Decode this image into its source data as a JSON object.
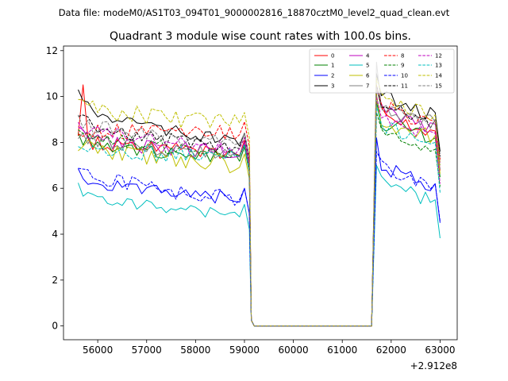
{
  "figure": {
    "suptitle": "Data file: modeM0/AS1T03_094T01_9000002816_18870cztM0_level2_quad_clean.evt"
  },
  "chart_data": {
    "type": "line",
    "title": "Quadrant 3 module wise count rates with 100.0s bins.",
    "xlabel": "",
    "ylabel": "",
    "x_offset_label": "+2.912e8",
    "xlim": [
      55300,
      63350
    ],
    "ylim": [
      -0.6,
      12.2
    ],
    "x_ticks": [
      56000,
      57000,
      58000,
      59000,
      60000,
      61000,
      62000,
      63000
    ],
    "x_tick_labels": [
      "56000",
      "57000",
      "58000",
      "59000",
      "60000",
      "61000",
      "62000",
      "63000"
    ],
    "y_ticks": [
      0,
      2,
      4,
      6,
      8,
      10,
      12
    ],
    "y_tick_labels": [
      "0",
      "2",
      "4",
      "6",
      "8",
      "10",
      "12"
    ],
    "grid": false,
    "legend_position": "upper right",
    "segments": {
      "seg1": {
        "start": 55600,
        "step": 100,
        "count": 36
      },
      "gap": {
        "start": 59200,
        "end": 61600,
        "value": 0.0
      },
      "seg2": {
        "start": 61700,
        "step": 100,
        "count": 14
      }
    },
    "series": [
      {
        "name": "0",
        "color": "#ff0000",
        "style": "solid",
        "seg1": {
          "level": 8.2,
          "decay": 0.6,
          "noise": 0.35,
          "spike": [
            1,
            2.2
          ]
        },
        "seg2": {
          "level": 9.3,
          "noise": 0.4,
          "peak": 10.5
        }
      },
      {
        "name": "1",
        "color": "#008000",
        "style": "solid",
        "seg1": {
          "level": 8.3,
          "decay": 1.0,
          "noise": 0.3
        },
        "seg2": {
          "level": 9.0,
          "noise": 0.35,
          "peak": 9.8
        }
      },
      {
        "name": "2",
        "color": "#0000ff",
        "style": "solid",
        "seg1": {
          "level": 6.7,
          "decay": 1.2,
          "noise": 0.3
        },
        "seg2": {
          "level": 7.0,
          "noise": 0.35,
          "peak": 8.2
        }
      },
      {
        "name": "3",
        "color": "#000000",
        "style": "solid",
        "seg1": {
          "level": 10.1,
          "decay": 2.2,
          "noise": 0.3,
          "spike": [
            2,
            0.3
          ]
        },
        "seg2": {
          "level": 10.1,
          "noise": 0.35,
          "peak": 11.0
        }
      },
      {
        "name": "4",
        "color": "#bf00bf",
        "style": "solid",
        "seg1": {
          "level": 8.4,
          "decay": 0.9,
          "noise": 0.35
        },
        "seg2": {
          "level": 9.6,
          "noise": 0.35,
          "peak": 10.3
        }
      },
      {
        "name": "5",
        "color": "#00bfbf",
        "style": "solid",
        "seg1": {
          "level": 6.0,
          "decay": 1.2,
          "noise": 0.25
        },
        "seg2": {
          "level": 6.3,
          "noise": 0.35,
          "peak": 7.0
        }
      },
      {
        "name": "6",
        "color": "#bfbf00",
        "style": "solid",
        "seg1": {
          "level": 8.0,
          "decay": 1.0,
          "noise": 0.4
        },
        "seg2": {
          "level": 9.1,
          "noise": 0.4,
          "peak": 10.1
        }
      },
      {
        "name": "7",
        "color": "#808080",
        "style": "solid",
        "seg1": {
          "level": 8.4,
          "decay": 1.0,
          "noise": 0.3
        },
        "seg2": {
          "level": 9.7,
          "noise": 0.4,
          "peak": 11.5
        }
      },
      {
        "name": "8",
        "color": "#ff0000",
        "style": "dashed",
        "seg1": {
          "level": 8.6,
          "decay": 0.2,
          "noise": 0.35
        },
        "seg2": {
          "level": 9.7,
          "noise": 0.35,
          "peak": 10.4
        }
      },
      {
        "name": "9",
        "color": "#008000",
        "style": "dashed",
        "seg1": {
          "level": 8.7,
          "decay": 1.3,
          "noise": 0.3
        },
        "seg2": {
          "level": 8.5,
          "noise": 0.3,
          "peak": 9.3
        }
      },
      {
        "name": "10",
        "color": "#0000ff",
        "style": "dashed",
        "seg1": {
          "level": 7.0,
          "decay": 1.5,
          "noise": 0.35
        },
        "seg2": {
          "level": 7.0,
          "noise": 0.3,
          "peak": 7.6
        }
      },
      {
        "name": "11",
        "color": "#000000",
        "style": "dashed",
        "seg1": {
          "level": 9.2,
          "decay": 1.5,
          "noise": 0.3
        },
        "seg2": {
          "level": 9.8,
          "noise": 0.3,
          "peak": 10.5
        }
      },
      {
        "name": "12",
        "color": "#bf00bf",
        "style": "dashed",
        "seg1": {
          "level": 8.9,
          "decay": 1.2,
          "noise": 0.3
        },
        "seg2": {
          "level": 9.2,
          "noise": 0.3,
          "peak": 10.0
        }
      },
      {
        "name": "13",
        "color": "#00bfbf",
        "style": "dashed",
        "seg1": {
          "level": 7.8,
          "decay": 0.4,
          "noise": 0.35
        },
        "seg2": {
          "level": 8.8,
          "noise": 0.35,
          "peak": 9.6
        }
      },
      {
        "name": "14",
        "color": "#bfbf00",
        "style": "dashed",
        "seg1": {
          "level": 9.8,
          "decay": 1.0,
          "noise": 0.4
        },
        "seg2": {
          "level": 10.0,
          "noise": 0.35,
          "peak": 10.8
        }
      },
      {
        "name": "15",
        "color": "#808080",
        "style": "dashed",
        "seg1": {
          "level": 9.1,
          "decay": 1.2,
          "noise": 0.3
        },
        "seg2": {
          "level": 9.8,
          "noise": 0.3,
          "peak": 10.4
        }
      }
    ]
  }
}
